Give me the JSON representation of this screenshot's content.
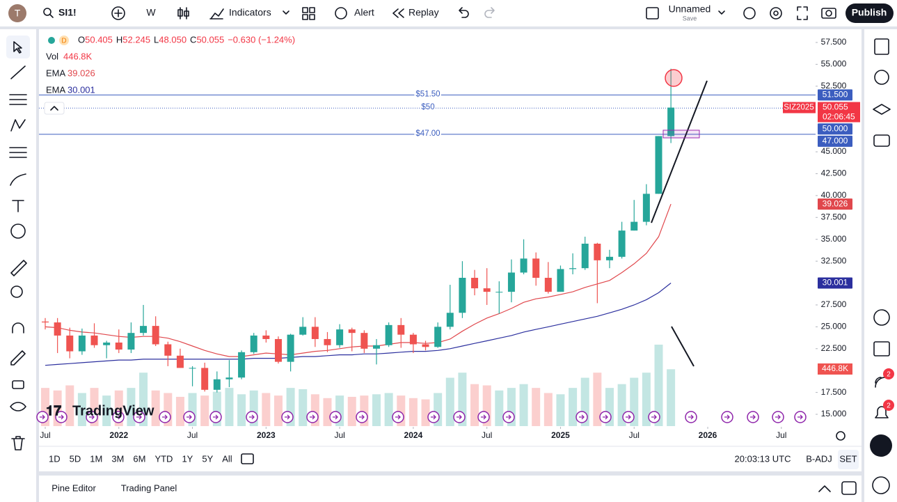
{
  "toolbar": {
    "avatar": "T",
    "symbol": "SI1!",
    "interval": "W",
    "indicators": "Indicators",
    "alert": "Alert",
    "replay": "Replay",
    "layout_name": "Unnamed",
    "save": "Save",
    "publish": "Publish"
  },
  "legend": {
    "source": "D",
    "ohlc": [
      {
        "key": "O",
        "value": "50.405"
      },
      {
        "key": "H",
        "value": "52.245"
      },
      {
        "key": "L",
        "value": "48.050"
      },
      {
        "key": "C",
        "value": "50.055"
      }
    ],
    "change": "−0.630 (−1.24%)"
  },
  "chart_data": {
    "type": "candlestick",
    "x": [
      "2021-07",
      "2021-08",
      "2021-09",
      "2021-10",
      "2021-11",
      "2021-12",
      "2022-01",
      "2022-02",
      "2022-03",
      "2022-04",
      "2022-05",
      "2022-06",
      "2022-07",
      "2022-08",
      "2022-09",
      "2022-10",
      "2022-11",
      "2022-12",
      "2023-01",
      "2023-02",
      "2023-03",
      "2023-04",
      "2023-05",
      "2023-06",
      "2023-07",
      "2023-08",
      "2023-09",
      "2023-10",
      "2023-11",
      "2023-12",
      "2024-01",
      "2024-02",
      "2024-03",
      "2024-04",
      "2024-05",
      "2024-06",
      "2024-07",
      "2024-08",
      "2024-09",
      "2024-10",
      "2024-11",
      "2024-12",
      "2025-01",
      "2025-02",
      "2025-03",
      "2025-04",
      "2025-05",
      "2025-06",
      "2025-07",
      "2025-08",
      "2025-09",
      "2025-10"
    ],
    "open": [
      25.6,
      25.5,
      24.0,
      22.2,
      24.0,
      22.9,
      23.2,
      22.4,
      24.3,
      25.1,
      23.0,
      21.7,
      20.3,
      20.3,
      17.8,
      19.0,
      19.2,
      22.1,
      24.0,
      23.6,
      21.0,
      24.1,
      25.0,
      23.6,
      22.9,
      24.7,
      24.3,
      22.5,
      22.9,
      25.2,
      24.1,
      23.0,
      22.7,
      25.0,
      26.6,
      30.6,
      29.4,
      29.0,
      29.0,
      31.2,
      32.8,
      30.6,
      29.0,
      31.6,
      31.7,
      34.5,
      32.6,
      33.0,
      36.0,
      37.0,
      40.2,
      46.8
    ],
    "high": [
      26.0,
      26.0,
      24.9,
      24.8,
      25.4,
      23.4,
      24.7,
      25.5,
      27.5,
      26.2,
      23.3,
      22.5,
      20.5,
      20.9,
      19.9,
      21.2,
      22.3,
      24.3,
      24.6,
      23.9,
      24.2,
      26.1,
      26.1,
      24.4,
      25.3,
      24.9,
      24.6,
      23.6,
      25.5,
      26.0,
      24.3,
      23.4,
      25.5,
      29.8,
      32.5,
      31.5,
      31.7,
      30.2,
      32.7,
      35.0,
      33.5,
      32.4,
      32.0,
      33.4,
      35.3,
      34.6,
      33.8,
      37.0,
      39.5,
      41.3,
      46.8,
      54.5
    ],
    "low": [
      24.7,
      22.0,
      21.4,
      21.8,
      22.6,
      21.4,
      22.0,
      22.0,
      24.0,
      22.8,
      20.5,
      20.3,
      18.2,
      17.6,
      17.5,
      18.1,
      19.0,
      21.9,
      23.2,
      20.8,
      19.9,
      24.0,
      22.7,
      22.1,
      22.6,
      22.2,
      22.0,
      20.7,
      22.7,
      22.6,
      22.0,
      22.3,
      22.6,
      24.7,
      26.0,
      28.6,
      27.5,
      26.5,
      27.8,
      31.0,
      29.7,
      28.8,
      29.0,
      31.0,
      31.5,
      27.7,
      31.7,
      32.8,
      36.0,
      36.6,
      40.2,
      46.0
    ],
    "close": [
      25.5,
      24.0,
      22.2,
      24.0,
      22.9,
      23.2,
      22.4,
      24.3,
      25.1,
      23.0,
      21.7,
      20.3,
      20.3,
      17.8,
      19.0,
      19.2,
      22.1,
      24.0,
      23.6,
      21.0,
      24.1,
      25.0,
      23.6,
      22.9,
      24.7,
      24.3,
      22.5,
      22.9,
      25.2,
      24.1,
      23.0,
      22.7,
      25.0,
      26.6,
      30.6,
      29.4,
      29.0,
      29.0,
      31.2,
      32.8,
      30.6,
      29.0,
      31.6,
      31.7,
      34.5,
      32.6,
      33.0,
      36.0,
      37.0,
      40.2,
      46.8,
      50.055
    ],
    "up_color": "#26a69a",
    "down_color": "#ef5350",
    "volume": {
      "name": "Vol",
      "value_label": "446.8K",
      "color": "#ef5350",
      "values": [
        300,
        280,
        320,
        260,
        300,
        240,
        280,
        300,
        420,
        280,
        260,
        230,
        260,
        240,
        270,
        300,
        250,
        280,
        260,
        240,
        300,
        290,
        250,
        220,
        240,
        230,
        240,
        250,
        260,
        240,
        220,
        210,
        260,
        380,
        420,
        330,
        320,
        280,
        300,
        330,
        300,
        260,
        250,
        300,
        380,
        420,
        300,
        330,
        380,
        420,
        640,
        446.8
      ]
    },
    "series": [
      {
        "name": "EMA",
        "color": "#e0474c",
        "values": [
          25.0,
          24.9,
          24.6,
          24.4,
          24.3,
          24.1,
          23.9,
          23.8,
          23.9,
          23.9,
          23.7,
          23.3,
          22.8,
          22.3,
          21.9,
          21.6,
          21.6,
          21.8,
          22.0,
          21.9,
          21.8,
          22.0,
          22.2,
          22.3,
          22.5,
          22.7,
          22.8,
          22.8,
          23.0,
          23.2,
          23.2,
          23.1,
          23.2,
          23.6,
          24.5,
          25.3,
          26.0,
          26.5,
          27.1,
          27.8,
          28.2,
          28.4,
          28.7,
          29.0,
          29.5,
          29.9,
          30.3,
          31.2,
          32.2,
          33.4,
          35.3,
          39.026
        ]
      },
      {
        "name": "EMA",
        "color": "#2b2f9e",
        "values": [
          20.6,
          20.7,
          20.8,
          20.9,
          21.0,
          21.1,
          21.2,
          21.2,
          21.3,
          21.3,
          21.3,
          21.3,
          21.3,
          21.3,
          21.3,
          21.3,
          21.3,
          21.4,
          21.4,
          21.4,
          21.5,
          21.6,
          21.6,
          21.7,
          21.8,
          21.8,
          21.9,
          21.9,
          22.0,
          22.1,
          22.2,
          22.2,
          22.3,
          22.5,
          22.8,
          23.1,
          23.4,
          23.7,
          24.0,
          24.4,
          24.7,
          25.0,
          25.3,
          25.6,
          25.9,
          26.2,
          26.6,
          27.0,
          27.5,
          28.1,
          28.9,
          30.001
        ]
      }
    ],
    "hlines": [
      {
        "value": 51.5,
        "label": "$51.50",
        "axis_label": "51.500",
        "color": "#3b5dbf",
        "dotted": false
      },
      {
        "value": 50,
        "label": "$50",
        "axis_label": "50.000",
        "color": "#3b5dbf",
        "dotted": true
      },
      {
        "value": 47,
        "label": "$47.00",
        "axis_label": "47.000",
        "color": "#3b5dbf",
        "dotted": false
      }
    ],
    "last_price": {
      "symbol": "SIZ2025",
      "price": "50.055",
      "countdown": "02:06:45",
      "color": "#f23645"
    },
    "ylim": [
      13.65,
      58.85
    ],
    "yticks": [
      {
        "value": 57.5,
        "label": "57.500"
      },
      {
        "value": 55,
        "label": "55.000"
      },
      {
        "value": 52.5,
        "label": "52.500"
      },
      {
        "value": 45,
        "label": "45.000"
      },
      {
        "value": 42.5,
        "label": "42.500"
      },
      {
        "value": 40,
        "label": "40.000"
      },
      {
        "value": 37.5,
        "label": "37.500"
      },
      {
        "value": 35,
        "label": "35.000"
      },
      {
        "value": 32.5,
        "label": "32.500"
      },
      {
        "value": 27.5,
        "label": "27.500"
      },
      {
        "value": 25,
        "label": "25.000"
      },
      {
        "value": 22.5,
        "label": "22.500"
      },
      {
        "value": 17.5,
        "label": "17.500"
      },
      {
        "value": 15,
        "label": "15.000"
      }
    ],
    "xticks": [
      {
        "value": "2021-07",
        "label": "Jul"
      },
      {
        "value": "2022-01",
        "label": "2022"
      },
      {
        "value": "2022-07",
        "label": "Jul"
      },
      {
        "value": "2023-01",
        "label": "2023"
      },
      {
        "value": "2023-07",
        "label": "Jul"
      },
      {
        "value": "2024-01",
        "label": "2024"
      },
      {
        "value": "2024-07",
        "label": "Jul"
      },
      {
        "value": "2025-01",
        "label": "2025"
      },
      {
        "value": "2025-07",
        "label": "Jul"
      },
      {
        "value": "2026-01",
        "label": "2026"
      },
      {
        "value": "2026-07",
        "label": "Jul"
      }
    ]
  },
  "range_buttons": [
    "1D",
    "5D",
    "1M",
    "3M",
    "6M",
    "YTD",
    "1Y",
    "5Y",
    "All"
  ],
  "clock": "20:03:13 UTC",
  "adjustment": "B-ADJ",
  "session": "SET",
  "bottom_tabs": [
    "Pine Editor",
    "Trading Panel"
  ],
  "brand": "TradingView",
  "notifications": [
    "2",
    "2"
  ]
}
